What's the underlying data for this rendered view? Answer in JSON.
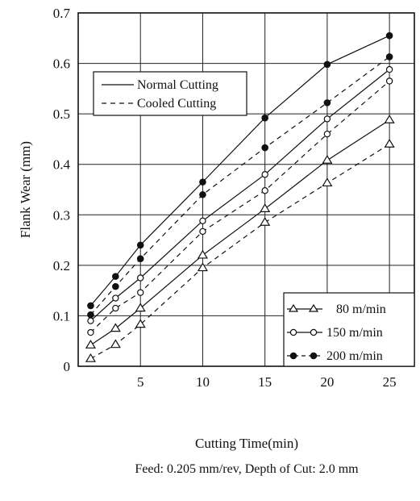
{
  "chart_data": {
    "type": "line",
    "xlabel": "Cutting Time(min)",
    "ylabel": "Flank Wear (mm)",
    "footnote": "Feed: 0.205 mm/rev, Depth of Cut: 2.0 mm",
    "x_ticks": [
      "5",
      "10",
      "15",
      "20",
      "25"
    ],
    "y_ticks": [
      "0",
      "0.1",
      "0.2",
      "0.3",
      "0.4",
      "0.5",
      "0.6",
      "0.7"
    ],
    "xlim": [
      0,
      27
    ],
    "ylim": [
      0,
      0.7
    ],
    "grid": true,
    "x": [
      1,
      3,
      5,
      10,
      15,
      20,
      25
    ],
    "series": [
      {
        "name": "80 m/min",
        "mode": "Normal Cutting",
        "marker": "triangle",
        "values": [
          0.042,
          0.075,
          0.115,
          0.22,
          0.312,
          0.408,
          0.488
        ]
      },
      {
        "name": "80 m/min",
        "mode": "Cooled Cutting",
        "marker": "triangle",
        "values": [
          0.015,
          0.043,
          0.083,
          0.195,
          0.285,
          0.363,
          0.44
        ]
      },
      {
        "name": "150 m/min",
        "mode": "Normal Cutting",
        "marker": "open-circle",
        "values": [
          0.09,
          0.135,
          0.175,
          0.288,
          0.38,
          0.49,
          0.588
        ]
      },
      {
        "name": "150 m/min",
        "mode": "Cooled Cutting",
        "marker": "open-circle",
        "values": [
          0.067,
          0.115,
          0.146,
          0.267,
          0.348,
          0.46,
          0.565
        ]
      },
      {
        "name": "200 m/min",
        "mode": "Normal Cutting",
        "marker": "filled-circle",
        "values": [
          0.12,
          0.178,
          0.24,
          0.365,
          0.492,
          0.598,
          0.655
        ]
      },
      {
        "name": "200 m/min",
        "mode": "Cooled Cutting",
        "marker": "filled-circle",
        "values": [
          0.102,
          0.158,
          0.213,
          0.34,
          0.433,
          0.522,
          0.613
        ]
      }
    ],
    "legend_linestyle": {
      "position": "top-left",
      "entries": [
        {
          "label": "Normal Cutting",
          "style": "solid"
        },
        {
          "label": "Cooled Cutting",
          "style": "dashed"
        }
      ]
    },
    "legend_speed": {
      "position": "bottom-right",
      "entries": [
        {
          "label": "80 m/min",
          "marker": "triangle"
        },
        {
          "label": "150 m/min",
          "marker": "open-circle"
        },
        {
          "label": "200 m/min",
          "marker": "filled-circle"
        }
      ]
    }
  }
}
